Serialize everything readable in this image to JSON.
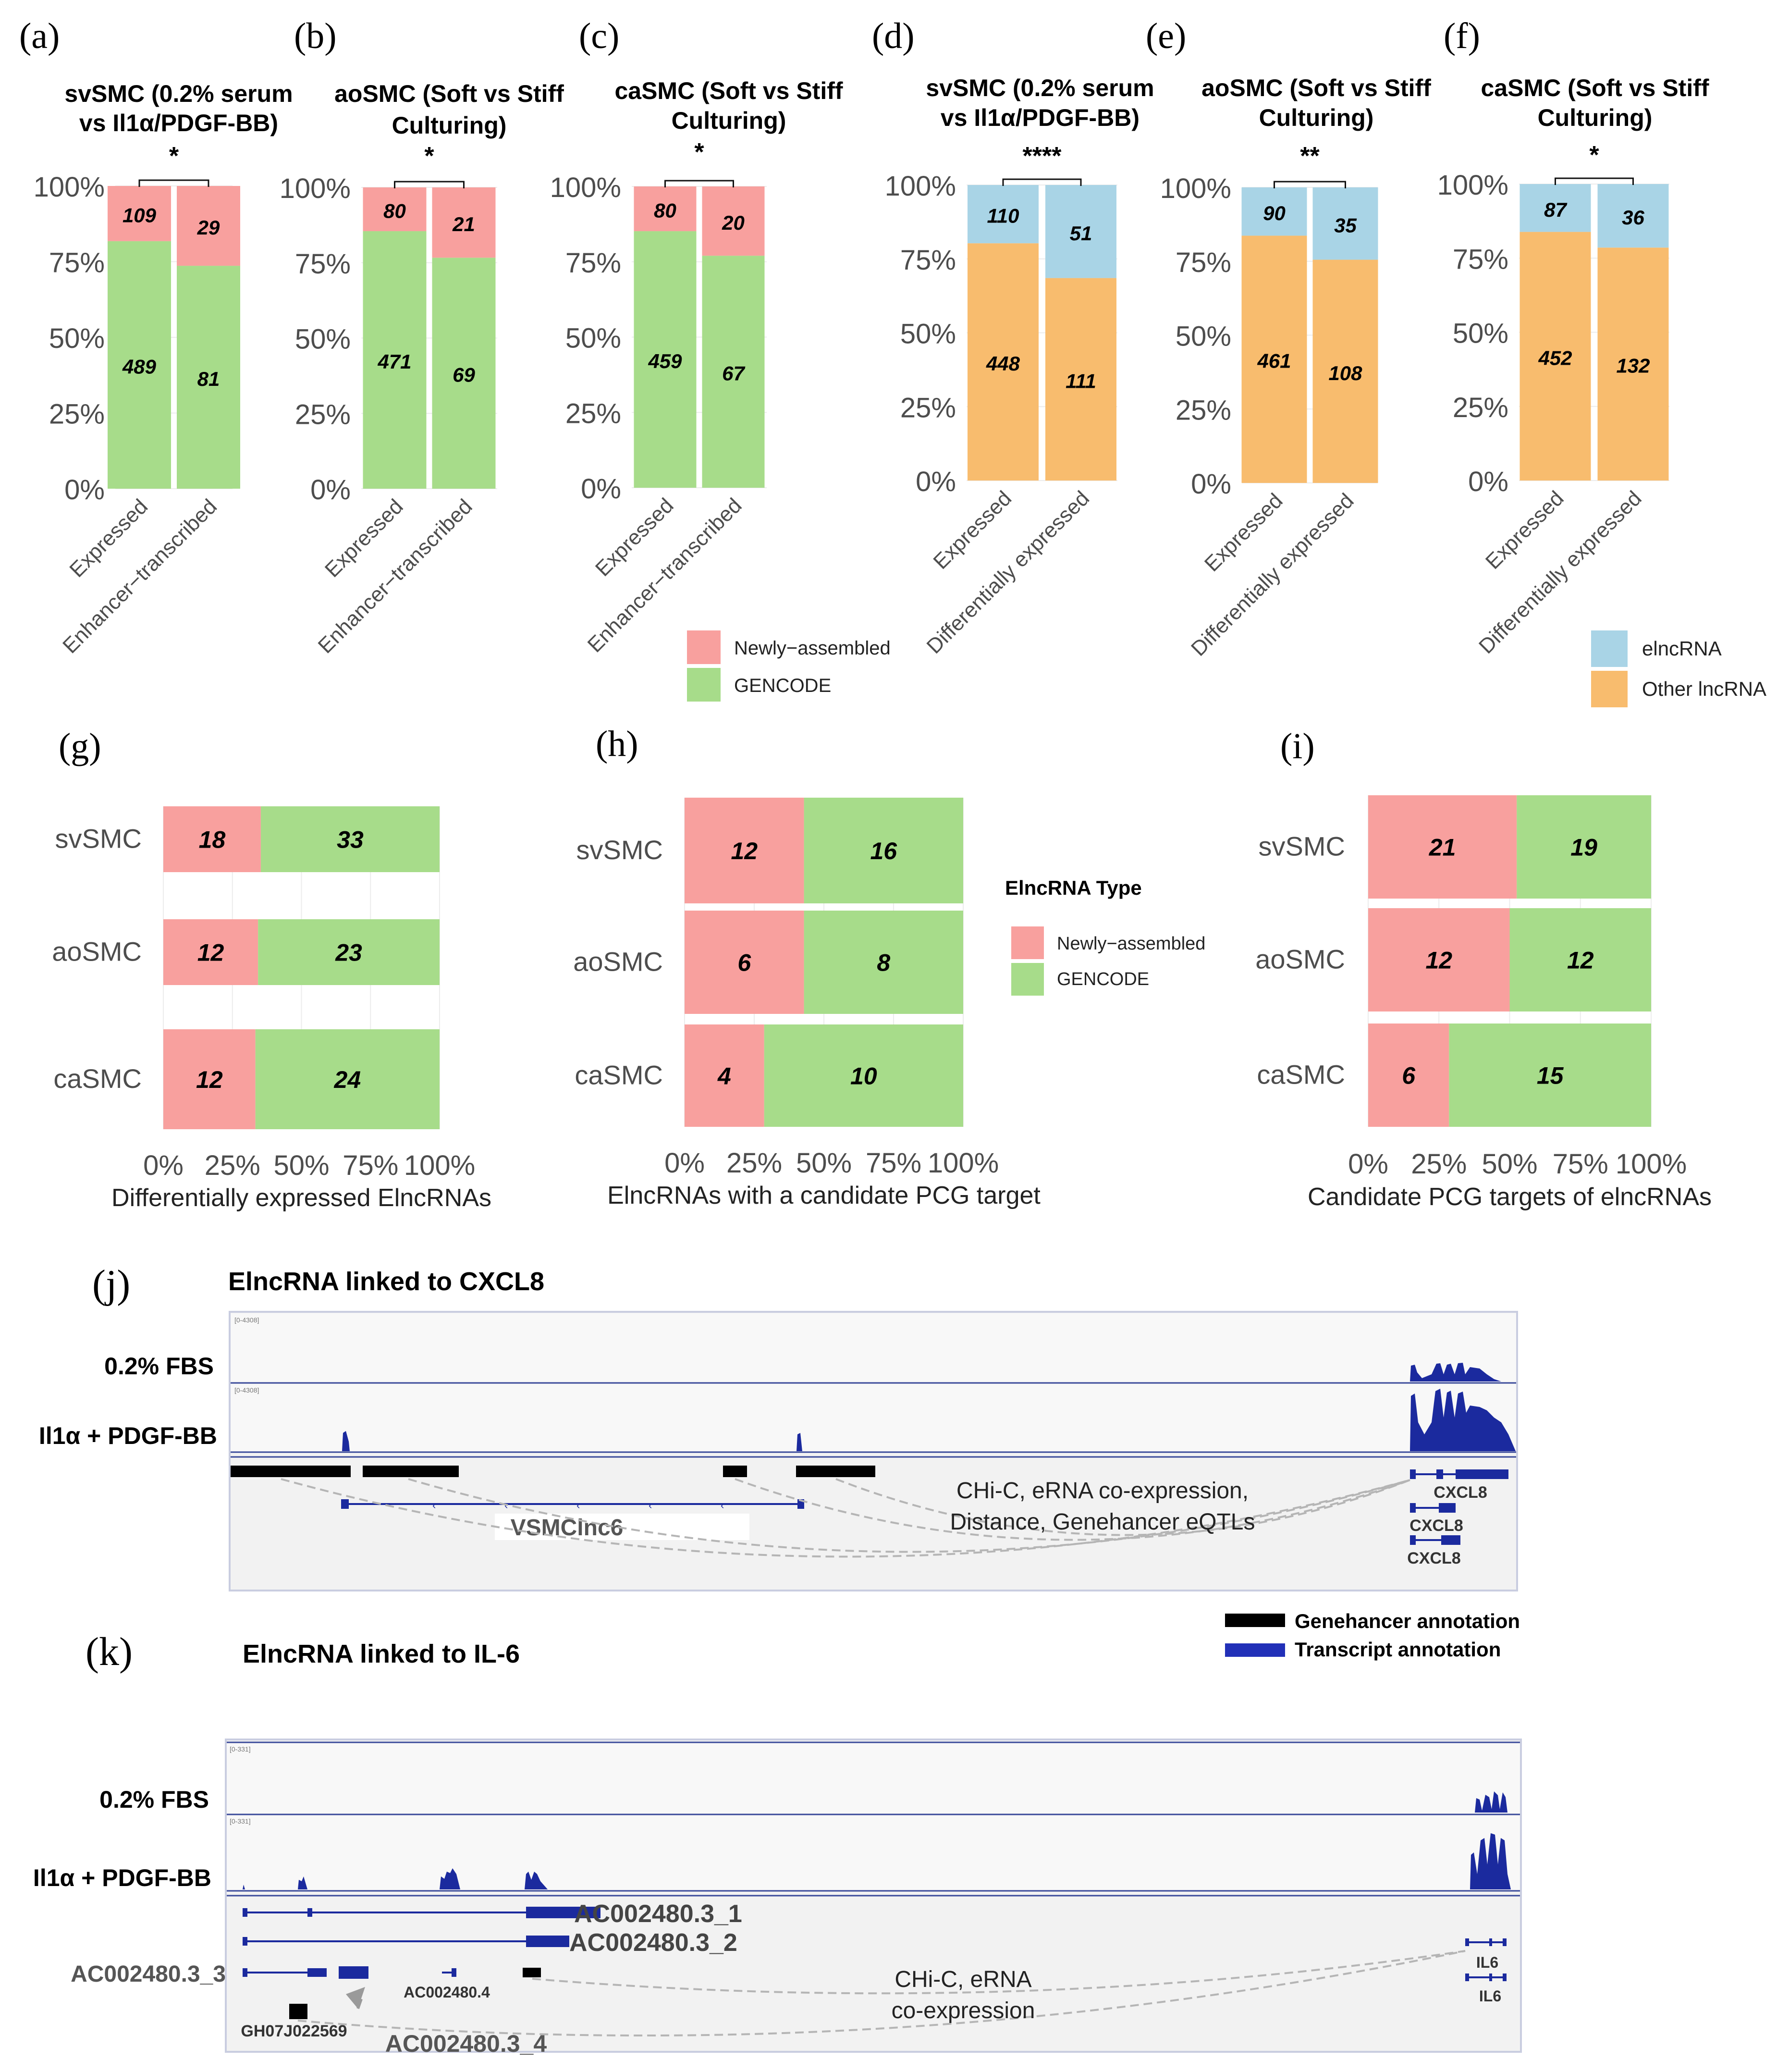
{
  "colors": {
    "newly": "#F8A09E",
    "gencode": "#A7DC8A",
    "elnc": "#A9D4E6",
    "other": "#F8BC6E",
    "axis_text": "#4d4d4d",
    "track_blue": "#1b2a9e",
    "arc": "#b5b5b5",
    "track_border": "#3a4a9a"
  },
  "chart_data": [
    {
      "id": "a",
      "type": "bar",
      "stacked": "percent",
      "panel_label": "(a)",
      "title_lines": [
        "svSMC (0.2% serum",
        "vs Il1α/PDGF-BB)"
      ],
      "categories": [
        "Expressed",
        "Enhancer−transcribed"
      ],
      "series": [
        {
          "name": "GENCODE",
          "values": [
            489,
            81
          ]
        },
        {
          "name": "Newly−assembled",
          "values": [
            109,
            29
          ]
        }
      ],
      "significance": "*",
      "yticks": [
        "0%",
        "25%",
        "50%",
        "75%",
        "100%"
      ],
      "ylim": [
        0,
        100
      ]
    },
    {
      "id": "b",
      "type": "bar",
      "stacked": "percent",
      "panel_label": "(b)",
      "title_lines": [
        "aoSMC (Soft vs Stiff",
        "Culturing)"
      ],
      "categories": [
        "Expressed",
        "Enhancer−transcribed"
      ],
      "series": [
        {
          "name": "GENCODE",
          "values": [
            471,
            69
          ]
        },
        {
          "name": "Newly−assembled",
          "values": [
            80,
            21
          ]
        }
      ],
      "significance": "*",
      "yticks": [
        "0%",
        "25%",
        "50%",
        "75%",
        "100%"
      ],
      "ylim": [
        0,
        100
      ]
    },
    {
      "id": "c",
      "type": "bar",
      "stacked": "percent",
      "panel_label": "(c)",
      "title_lines": [
        "caSMC (Soft vs Stiff",
        "Culturing)"
      ],
      "categories": [
        "Expressed",
        "Enhancer−transcribed"
      ],
      "series": [
        {
          "name": "GENCODE",
          "values": [
            459,
            67
          ]
        },
        {
          "name": "Newly−assembled",
          "values": [
            80,
            20
          ]
        }
      ],
      "significance": "*",
      "yticks": [
        "0%",
        "25%",
        "50%",
        "75%",
        "100%"
      ],
      "ylim": [
        0,
        100
      ]
    },
    {
      "id": "d",
      "type": "bar",
      "stacked": "percent",
      "panel_label": "(d)",
      "title_lines": [
        "svSMC (0.2% serum",
        "vs Il1α/PDGF-BB)"
      ],
      "categories": [
        "Expressed",
        "Differentially expressed"
      ],
      "series": [
        {
          "name": "Other lncRNA",
          "values": [
            448,
            111
          ]
        },
        {
          "name": "elncRNA",
          "values": [
            110,
            51
          ]
        }
      ],
      "significance": "****",
      "yticks": [
        "0%",
        "25%",
        "50%",
        "75%",
        "100%"
      ],
      "ylim": [
        0,
        100
      ]
    },
    {
      "id": "e",
      "type": "bar",
      "stacked": "percent",
      "panel_label": "(e)",
      "title_lines": [
        "aoSMC (Soft vs Stiff",
        "Culturing)"
      ],
      "categories": [
        "Expressed",
        "Differentially expressed"
      ],
      "series": [
        {
          "name": "Other lncRNA",
          "values": [
            461,
            108
          ]
        },
        {
          "name": "elncRNA",
          "values": [
            90,
            35
          ]
        }
      ],
      "significance": "**",
      "yticks": [
        "0%",
        "25%",
        "50%",
        "75%",
        "100%"
      ],
      "ylim": [
        0,
        100
      ]
    },
    {
      "id": "f",
      "type": "bar",
      "stacked": "percent",
      "panel_label": "(f)",
      "title_lines": [
        "caSMC (Soft vs Stiff",
        "Culturing)"
      ],
      "categories": [
        "Expressed",
        "Differentially expressed"
      ],
      "series": [
        {
          "name": "Other lncRNA",
          "values": [
            452,
            132
          ]
        },
        {
          "name": "elncRNA",
          "values": [
            87,
            36
          ]
        }
      ],
      "significance": "*",
      "yticks": [
        "0%",
        "25%",
        "50%",
        "75%",
        "100%"
      ],
      "ylim": [
        0,
        100
      ]
    },
    {
      "id": "g",
      "type": "bar",
      "orientation": "horizontal",
      "stacked": "percent",
      "panel_label": "(g)",
      "categories": [
        "svSMC",
        "aoSMC",
        "caSMC"
      ],
      "series": [
        {
          "name": "Newly−assembled",
          "values": [
            18,
            12,
            12
          ]
        },
        {
          "name": "GENCODE",
          "values": [
            33,
            23,
            24
          ]
        }
      ],
      "xlabel": "Differentially expressed ElncRNAs",
      "xticks": [
        "0%",
        "25%",
        "50%",
        "75%",
        "100%"
      ],
      "xlim": [
        0,
        100
      ]
    },
    {
      "id": "h",
      "type": "bar",
      "orientation": "horizontal",
      "stacked": "percent",
      "panel_label": "(h)",
      "categories": [
        "svSMC",
        "aoSMC",
        "caSMC"
      ],
      "series": [
        {
          "name": "Newly−assembled",
          "values": [
            12,
            6,
            4
          ]
        },
        {
          "name": "GENCODE",
          "values": [
            16,
            8,
            10
          ]
        }
      ],
      "xlabel": "ElncRNAs with a candidate PCG target",
      "xticks": [
        "0%",
        "25%",
        "50%",
        "75%",
        "100%"
      ],
      "xlim": [
        0,
        100
      ]
    },
    {
      "id": "i",
      "type": "bar",
      "orientation": "horizontal",
      "stacked": "percent",
      "panel_label": "(i)",
      "categories": [
        "svSMC",
        "aoSMC",
        "caSMC"
      ],
      "series": [
        {
          "name": "Newly−assembled",
          "values": [
            21,
            12,
            6
          ]
        },
        {
          "name": "GENCODE",
          "values": [
            19,
            12,
            15
          ]
        }
      ],
      "xlabel": "Candidate PCG targets of elncRNAs",
      "xticks": [
        "0%",
        "25%",
        "50%",
        "75%",
        "100%"
      ],
      "xlim": [
        0,
        100
      ]
    }
  ],
  "legends": {
    "abc": {
      "items": [
        "Newly−assembled",
        "GENCODE"
      ]
    },
    "def": {
      "items": [
        "elncRNA",
        "Other lncRNA"
      ]
    },
    "ghi": {
      "title": "ElncRNA Type",
      "items": [
        "Newly−assembled",
        "GENCODE"
      ]
    }
  },
  "panel_j": {
    "panel_label": "(j)",
    "title": "ElncRNA linked to CXCL8",
    "track_labels": [
      "0.2% FBS",
      "Il1α + PDGF-BB"
    ],
    "scale_labels": [
      "[0-4308]",
      "[0-4308]"
    ],
    "lnc_name": "VSMClnc6",
    "gene_labels": [
      "CXCL8",
      "CXCL8",
      "CXCL8"
    ],
    "evidence_lines": [
      "CHi-C, eRNA co-expression,",
      "Distance, Genehancer eQTLs"
    ]
  },
  "annotation_legend": {
    "items": [
      "Genehancer annotation",
      "Transcript annotation"
    ]
  },
  "panel_k": {
    "panel_label": "(k)",
    "title": "ElncRNA linked to IL-6",
    "track_labels": [
      "0.2% FBS",
      "Il1α + PDGF-BB"
    ],
    "scale_labels": [
      "[0-331]",
      "[0-331]"
    ],
    "transcripts": [
      "AC002480.3_1",
      "AC002480.3_2",
      "AC002480.3_3",
      "AC002480.4",
      "AC002480.3_4"
    ],
    "enhancer_label": "GH07J022569",
    "gene_labels": [
      "IL6",
      "IL6"
    ],
    "evidence_lines": [
      "CHi-C, eRNA",
      "co-expression"
    ]
  }
}
